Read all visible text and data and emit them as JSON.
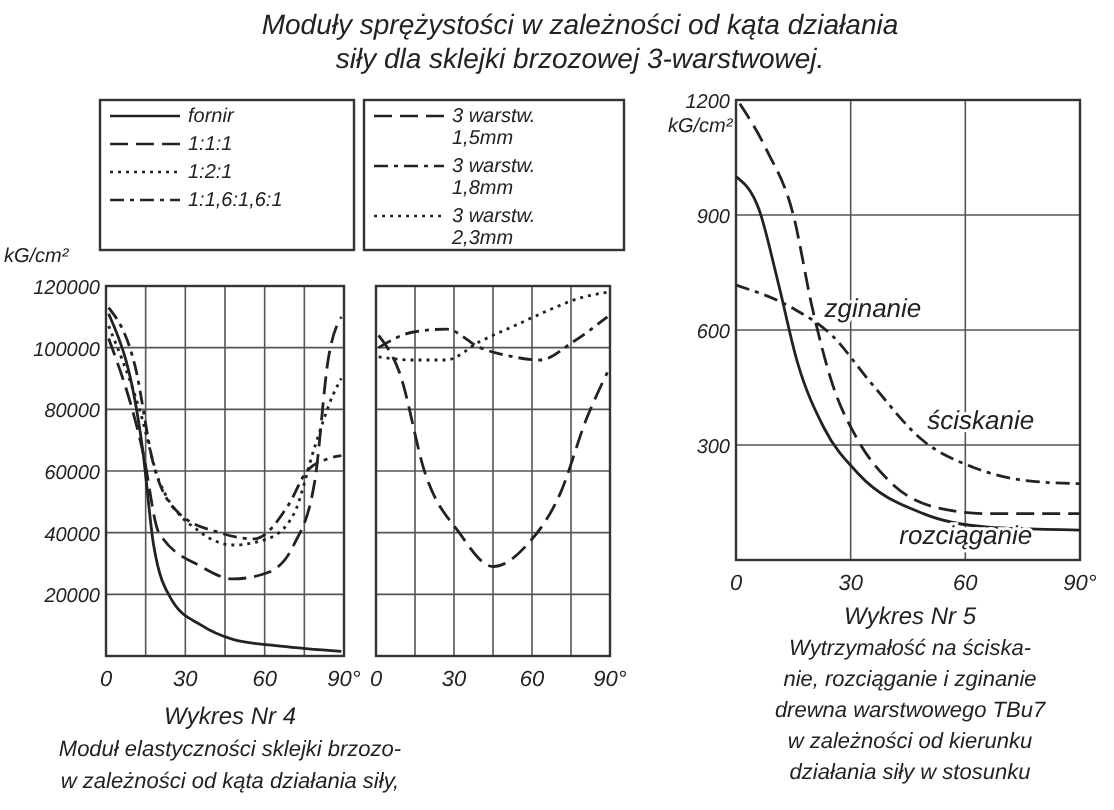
{
  "chart_data": [
    {
      "type": "line",
      "title": "Moduły sprężystości w zależności od kąta działania siły dla sklejki brzozowej 3-warstwowej.",
      "ylabel": "kG/cm²",
      "annotations": [
        "Wykres Nr 4",
        "Moduł elastyczności sklejki brzozo-",
        "w zależności od kąta działania siły,"
      ],
      "xlim": [
        0,
        90
      ],
      "ylim": [
        0,
        120000
      ],
      "xticks": [
        0,
        {
          "value": 15,
          "label": null
        },
        30,
        {
          "value": 45,
          "label": null
        },
        60,
        {
          "value": 75,
          "label": null
        },
        {
          "value": 90,
          "label": "90°"
        }
      ],
      "yticks": [
        20000,
        40000,
        60000,
        80000,
        100000,
        120000
      ],
      "grid": true,
      "legend": "top",
      "series": [
        {
          "name": "fornir",
          "color": "#222222",
          "line_style": "solid",
          "x": [
            1,
            14,
            18,
            25,
            36,
            48,
            66,
            89
          ],
          "values": [
            111000,
            66000,
            36000,
            18000,
            10000,
            5400,
            3200,
            1500
          ]
        },
        {
          "name": "1:1:1",
          "color": "#222222",
          "line_style": "dashed",
          "x": [
            1,
            14,
            20,
            36,
            48,
            61,
            71,
            79,
            84,
            89
          ],
          "values": [
            103000,
            66000,
            40000,
            29000,
            25000,
            27000,
            36000,
            57000,
            96000,
            110000
          ]
        },
        {
          "name": "1:2:1",
          "color": "#222222",
          "line_style": "dotted",
          "x": [
            1,
            13,
            20,
            36,
            48,
            61,
            71,
            79,
            86,
            89
          ],
          "values": [
            107000,
            79000,
            57000,
            40000,
            36000,
            38000,
            46000,
            68000,
            85000,
            90000
          ]
        },
        {
          "name": "1:1,6:1,6:1",
          "color": "#222222",
          "line_style": "dashed",
          "x": [
            1,
            11,
            18,
            28,
            43,
            56,
            69,
            76,
            84,
            89
          ],
          "values": [
            113000,
            94000,
            62000,
            46000,
            40000,
            38000,
            49000,
            60000,
            64000,
            65000
          ]
        }
      ]
    },
    {
      "type": "line",
      "xlim": [
        0,
        90
      ],
      "ylim": [
        0,
        120000
      ],
      "xticks": [
        0,
        {
          "value": 15,
          "label": null
        },
        30,
        {
          "value": 45,
          "label": null
        },
        60,
        {
          "value": 75,
          "label": null
        },
        {
          "value": 90,
          "label": "90°"
        }
      ],
      "yticks": [
        20000,
        40000,
        60000,
        80000,
        100000,
        120000
      ],
      "tick_labels": "x",
      "grid": true,
      "legend": "top",
      "series": [
        {
          "name": "3 warstw. 1,5mm",
          "color": "#222222",
          "line_style": "dashed",
          "x": [
            1,
            9,
            19,
            32,
            45,
            58,
            71,
            81,
            89
          ],
          "values": [
            104000,
            92000,
            59000,
            40000,
            29000,
            36000,
            53000,
            77000,
            92000
          ]
        },
        {
          "name": "3 warstw. 1,8mm",
          "color": "#222222",
          "line_style": "dashed",
          "x": [
            1,
            14,
            27,
            40,
            53,
            63,
            76,
            89
          ],
          "values": [
            100000,
            105000,
            106000,
            100000,
            97000,
            96000,
            102000,
            110000
          ]
        },
        {
          "name": "3 warstw. 2,3mm",
          "color": "#222222",
          "line_style": "dotted",
          "x": [
            1,
            14,
            27,
            40,
            53,
            66,
            78,
            89
          ],
          "values": [
            97000,
            96000,
            96000,
            102000,
            107000,
            112000,
            116000,
            118000
          ]
        }
      ]
    },
    {
      "type": "line",
      "ylabel": "kG/cm²",
      "annotations": [
        "Wykres Nr 5",
        "Wytrzymałość na ściska-",
        "nie, rozciąganie i zginanie",
        "drewna warstwowego TBu7",
        "w zależności od kierunku",
        "działania siły w stosunku"
      ],
      "xlim": [
        0,
        90
      ],
      "ylim": [
        0,
        1200
      ],
      "xticks": [
        0,
        30,
        60,
        {
          "value": 90,
          "label": "90°"
        }
      ],
      "yticks": [
        300,
        600,
        900,
        1200
      ],
      "grid": true,
      "legend": false,
      "series": [
        {
          "name": "zginanie",
          "color": "#222222",
          "line_style": "dashed",
          "x": [
            1,
            8,
            15,
            20,
            25,
            32,
            40,
            52,
            66,
            90
          ],
          "values": [
            1190,
            1070,
            900,
            656,
            466,
            311,
            207,
            138,
            121,
            121
          ]
        },
        {
          "name": "rozciąganie",
          "color": "#222222",
          "line_style": "solid",
          "x": [
            0,
            6,
            11,
            16,
            23,
            32,
            49,
            66,
            90
          ],
          "values": [
            1000,
            915,
            725,
            518,
            345,
            225,
            121,
            86,
            78
          ]
        },
        {
          "name": "ściskanie",
          "color": "#222222",
          "line_style": "dashed",
          "x": [
            0,
            15,
            25,
            35,
            49,
            62,
            76,
            90
          ],
          "values": [
            717,
            656,
            587,
            466,
            311,
            242,
            207,
            199
          ]
        }
      ]
    }
  ]
}
